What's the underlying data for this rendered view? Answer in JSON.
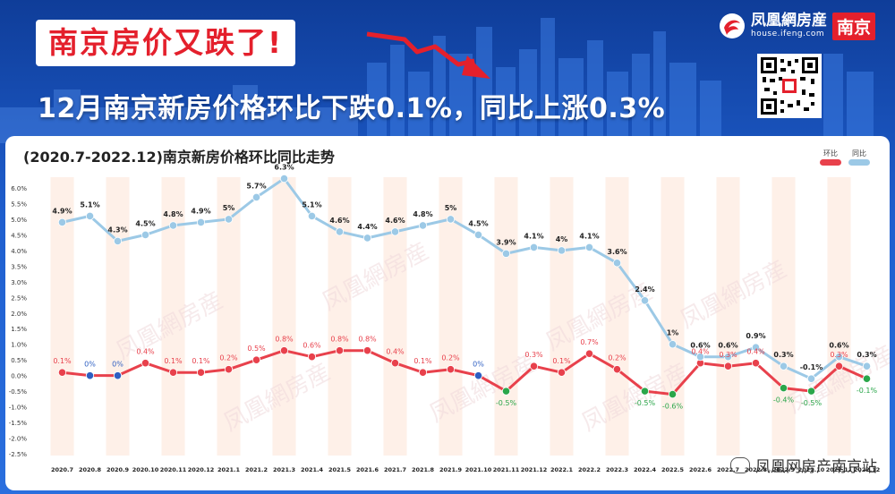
{
  "header": {
    "headline": "南京房价又跌了!",
    "subtitle": "12月南京新房价格环比下跌0.1%，同比上涨0.3%"
  },
  "brand": {
    "name": "凤凰網房産",
    "url": "house.ifeng.com",
    "city": "南京"
  },
  "watermark": "凤凰网房产南京站",
  "colors": {
    "mom": "#e8414c",
    "yoy": "#9cc9e6",
    "mom_negative": "#2aa64a",
    "mom_zero": "#2e5fc2",
    "band": "#fdebe0"
  },
  "chart_data": {
    "type": "line",
    "title": "(2020.7-2022.12)南京新房价格环比同比走势",
    "legend": [
      "环比",
      "同比"
    ],
    "legend_position": "top-right",
    "x": [
      "2020.7",
      "2020.8",
      "2020.9",
      "2020.10",
      "2020.11",
      "2020.12",
      "2021.1",
      "2021.2",
      "2021.3",
      "2021.4",
      "2021.5",
      "2021.6",
      "2021.7",
      "2021.8",
      "2021.9",
      "2021.10",
      "2021.11",
      "2021.12",
      "2022.1",
      "2022.2",
      "2022.3",
      "2022.4",
      "2022.5",
      "2022.6",
      "2022.7",
      "2022.8",
      "2022.9",
      "2022.10",
      "2022.11",
      "2022.12"
    ],
    "y_ticks": [
      "6.0%",
      "5.5%",
      "5.0%",
      "4.5%",
      "4.0%",
      "3.5%",
      "3.0%",
      "2.5%",
      "2.0%",
      "1.5%",
      "1.0%",
      "0.5%",
      "0.0%",
      "-0.5%",
      "-1.0%",
      "-1.5%",
      "-2.0%",
      "-2.5%"
    ],
    "ylim": [
      -2.5,
      6.0
    ],
    "series": [
      {
        "name": "环比",
        "values": [
          0.1,
          0,
          0,
          0.4,
          0.1,
          0.1,
          0.2,
          0.5,
          0.8,
          0.6,
          0.8,
          0.8,
          0.4,
          0.1,
          0.2,
          0,
          -0.5,
          0.3,
          0.1,
          0.7,
          0.2,
          -0.5,
          -0.6,
          0.4,
          0.3,
          0.4,
          -0.4,
          -0.5,
          0.3,
          -0.1
        ],
        "labels": [
          "0.1%",
          "0%",
          "0%",
          "0.4%",
          "0.1%",
          "0.1%",
          "0.2%",
          "0.5%",
          "0.8%",
          "0.6%",
          "0.8%",
          "0.8%",
          "0.4%",
          "0.1%",
          "0.2%",
          "0%",
          "-0.5%",
          "0.3%",
          "0.1%",
          "0.7%",
          "0.2%",
          "-0.5%",
          "-0.6%",
          "0.4%",
          "0.3%",
          "0.4%",
          "-0.4%",
          "-0.5%",
          "0.3%",
          "-0.1%"
        ]
      },
      {
        "name": "同比",
        "values": [
          4.9,
          5.1,
          4.3,
          4.5,
          4.8,
          4.9,
          5,
          5.7,
          6.3,
          5.1,
          4.6,
          4.4,
          4.6,
          4.8,
          5,
          4.5,
          3.9,
          4.1,
          4,
          4.1,
          3.6,
          2.4,
          1,
          0.6,
          0.6,
          0.9,
          0.3,
          -0.1,
          0.6,
          0.3
        ],
        "labels": [
          "4.9%",
          "5.1%",
          "4.3%",
          "4.5%",
          "4.8%",
          "4.9%",
          "5%",
          "5.7%",
          "6.3%",
          "5.1%",
          "4.6%",
          "4.4%",
          "4.6%",
          "4.8%",
          "5%",
          "4.5%",
          "3.9%",
          "4.1%",
          "4%",
          "4.1%",
          "3.6%",
          "2.4%",
          "1%",
          "0.6%",
          "0.6%",
          "0.9%",
          "0.3%",
          "-0.1%",
          "0.6%",
          "0.3%"
        ]
      }
    ]
  }
}
